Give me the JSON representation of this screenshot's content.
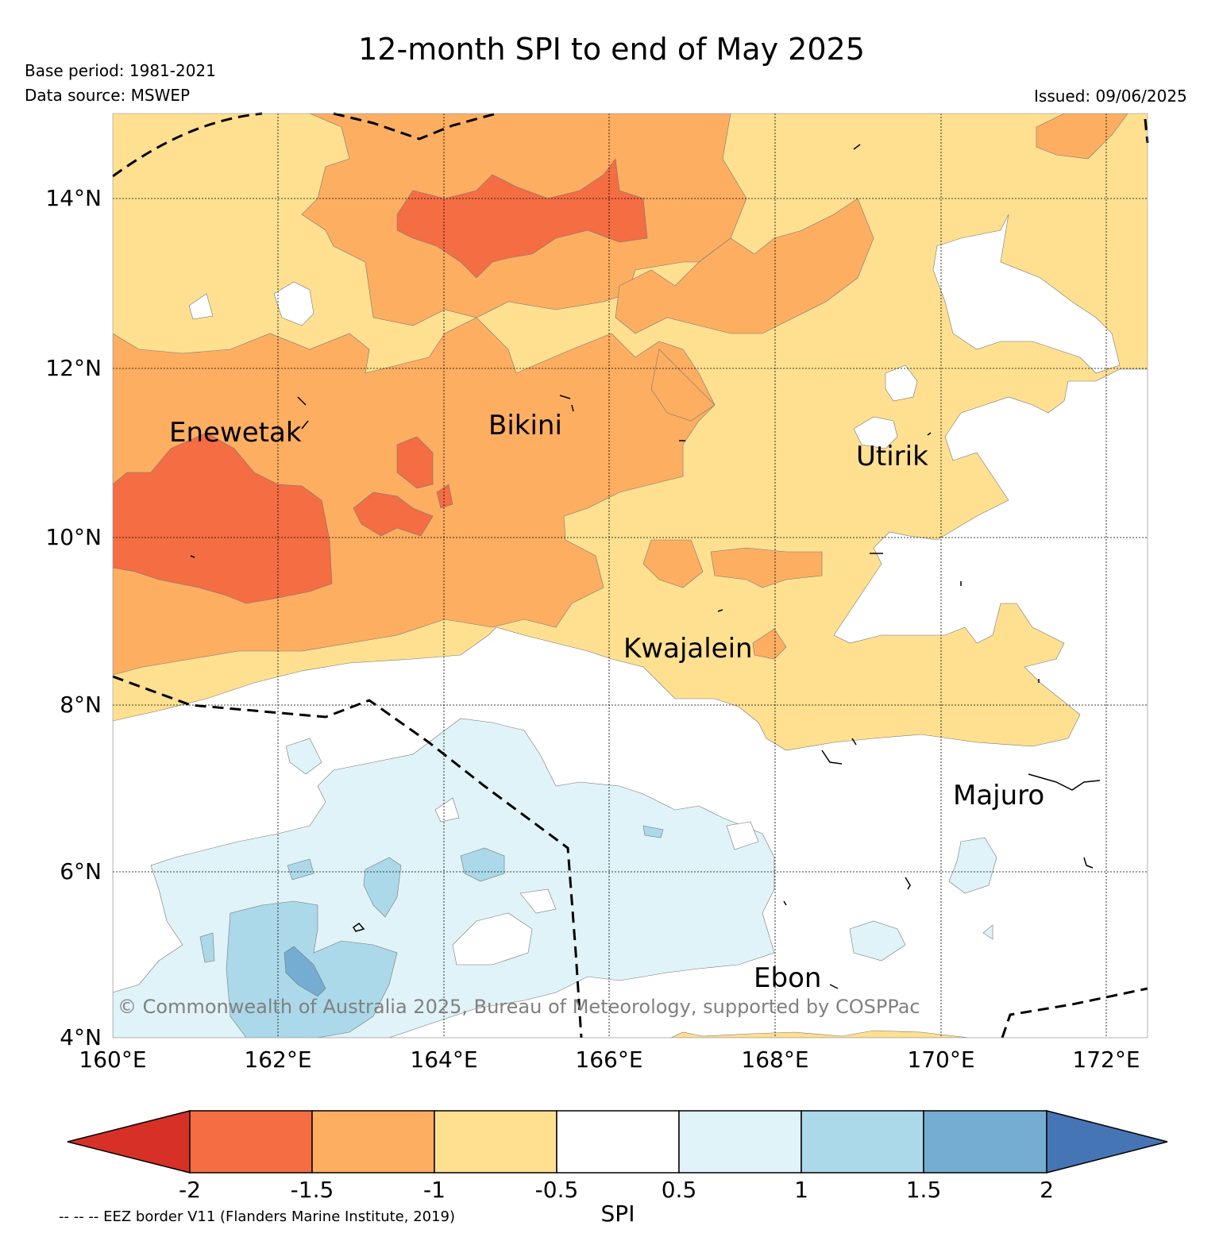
{
  "title": "12-month SPI to end of May 2025",
  "base_period": "Base period: 1981-2021",
  "data_source": "Data source: MSWEP",
  "issued": "Issued: 09/06/2025",
  "copyright": "© Commonwealth of Australia 2025, Bureau of Meteorology, supported by COSPPac",
  "eez_note": "-- -- -- EEZ border V11 (Flanders Marine Institute, 2019)",
  "map": {
    "lon_range": [
      160,
      172.5
    ],
    "lat_range": [
      4,
      15
    ],
    "lon_labels": [
      "160°E",
      "162°E",
      "164°E",
      "166°E",
      "168°E",
      "170°E",
      "172°E"
    ],
    "lat_labels": [
      "4°N",
      "6°N",
      "8°N",
      "10°N",
      "12°N",
      "14°N"
    ],
    "places": [
      {
        "name": "Enewetak",
        "lon": 162.3,
        "lat": 11.3
      },
      {
        "name": "Bikini",
        "lon": 165.5,
        "lat": 11.4
      },
      {
        "name": "Utirik",
        "lon": 169.6,
        "lat": 10.9
      },
      {
        "name": "Kwajalein",
        "lon": 167.4,
        "lat": 8.7
      },
      {
        "name": "Majuro",
        "lon": 171.1,
        "lat": 6.9
      },
      {
        "name": "Ebon",
        "lon": 168.6,
        "lat": 4.7
      }
    ]
  },
  "colorbar": {
    "label": "SPI",
    "ticks": [
      "-2",
      "-1.5",
      "-1",
      "-0.5",
      "0.5",
      "1",
      "1.5",
      "2"
    ],
    "colors": [
      "#d73027",
      "#f46d43",
      "#fdae61",
      "#fee090",
      "#ffffff",
      "#e0f3f8",
      "#abd9e9",
      "#74add1",
      "#4575b4"
    ]
  }
}
